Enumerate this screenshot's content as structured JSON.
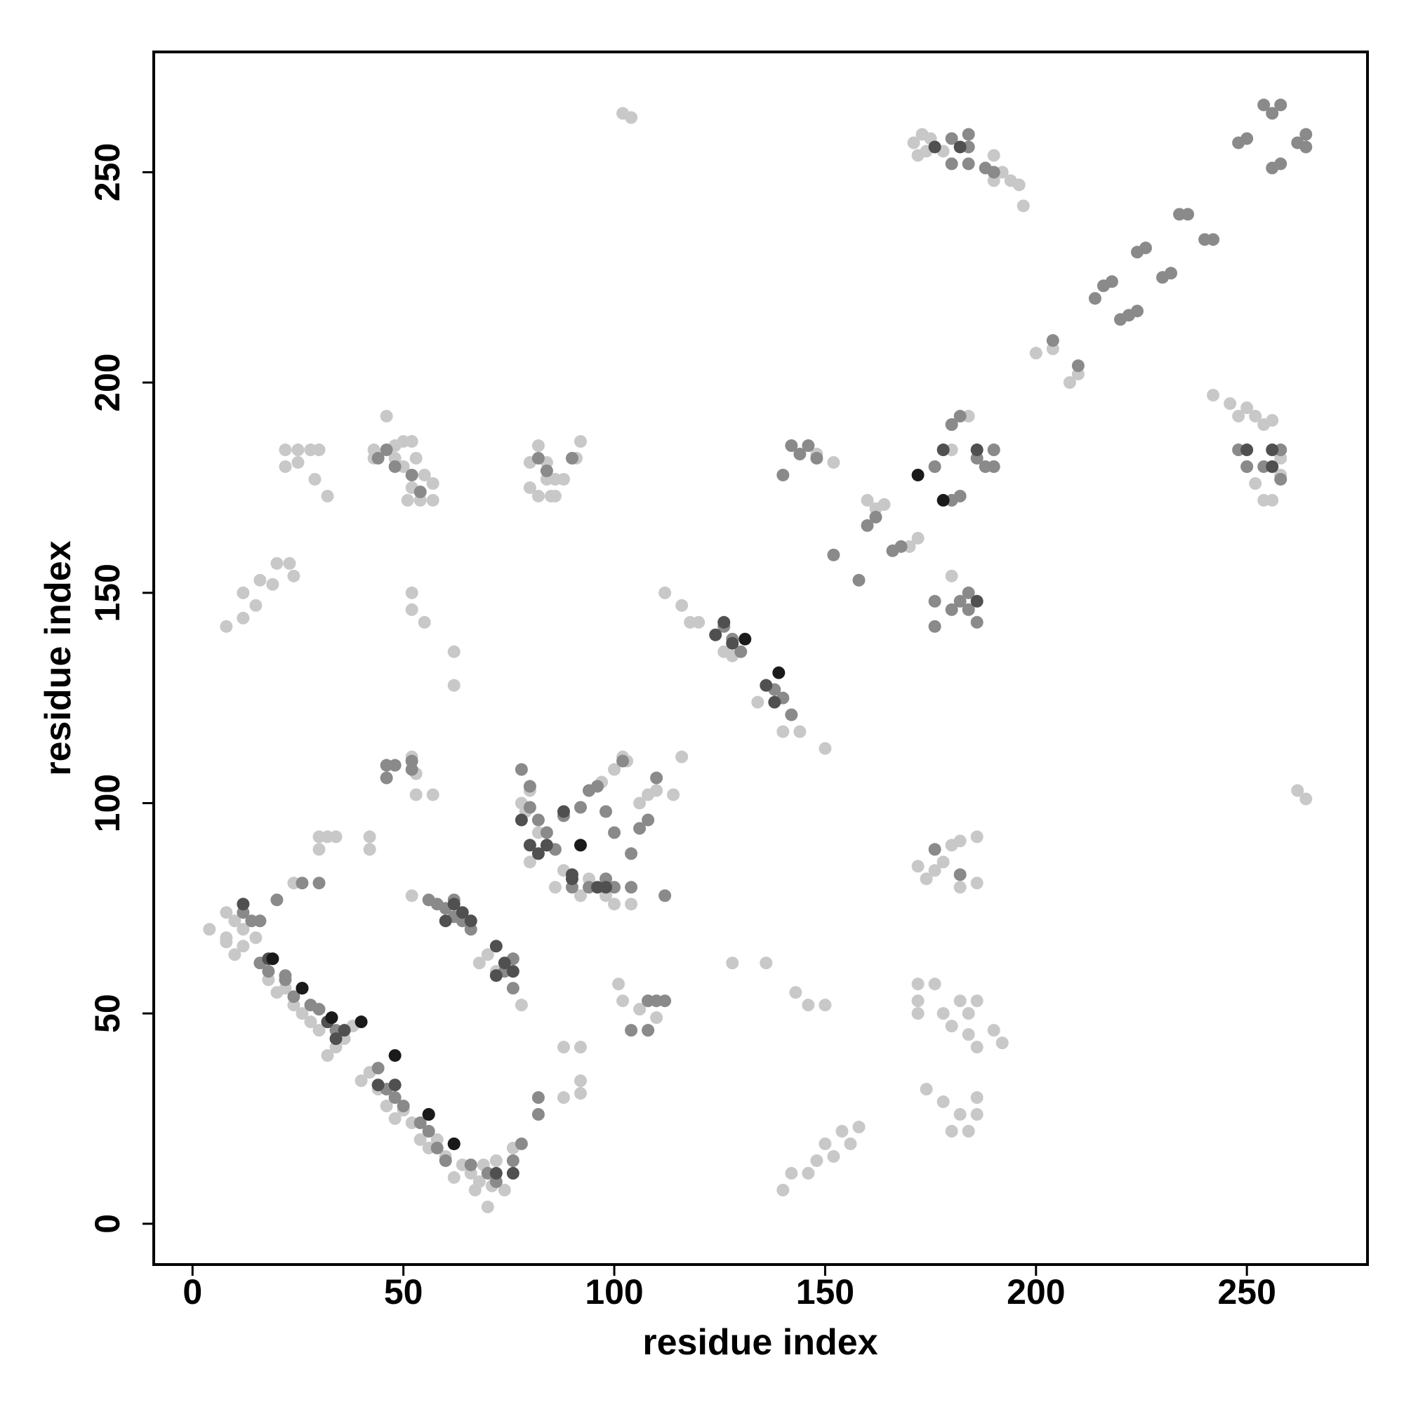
{
  "chart_data": {
    "type": "scatter",
    "xlabel": "residue index",
    "ylabel": "residue index",
    "xlim": [
      -9.2,
      278.6
    ],
    "ylim": [
      -9.7,
      278.6
    ],
    "xticks": [
      0,
      50,
      100,
      150,
      200,
      250
    ],
    "yticks": [
      0,
      50,
      100,
      150,
      200,
      250
    ],
    "series": [
      {
        "color": "#c8c8c8",
        "x": [
          4,
          8,
          8,
          10,
          12,
          12,
          15,
          10,
          8,
          16,
          8,
          12,
          12,
          15,
          16,
          19,
          20,
          23,
          24,
          22,
          22,
          25,
          28,
          29,
          30,
          32,
          25,
          43,
          43,
          46,
          48,
          48,
          50,
          50,
          52,
          53,
          52,
          51,
          54,
          57,
          57,
          55,
          30,
          30,
          32,
          34,
          42,
          42,
          24,
          52,
          52,
          55,
          62,
          62,
          52,
          53,
          53,
          57,
          52,
          80,
          82,
          84,
          84,
          85,
          86,
          88,
          86,
          91,
          92,
          80,
          82,
          18,
          20,
          22,
          24,
          26,
          28,
          30,
          32,
          34,
          36,
          38,
          40,
          42,
          44,
          46,
          48,
          50,
          52,
          54,
          56,
          58,
          60,
          62,
          64,
          66,
          67,
          68,
          69,
          70,
          71,
          72,
          74,
          76,
          78,
          68,
          72,
          70,
          79,
          80,
          78,
          80,
          82,
          84,
          86,
          88,
          92,
          94,
          98,
          100,
          104,
          97,
          100,
          102,
          103,
          106,
          108,
          110,
          114,
          88,
          92,
          88,
          92,
          92,
          101,
          102,
          106,
          108,
          110,
          108,
          116,
          116,
          120,
          112,
          118,
          126,
          128,
          134,
          136,
          140,
          144,
          150,
          128,
          136,
          143,
          146,
          150,
          140,
          142,
          146,
          148,
          150,
          152,
          154,
          156,
          158,
          102,
          104,
          171,
          172,
          173,
          175,
          174,
          178,
          190,
          192,
          194,
          196,
          197,
          190,
          200,
          204,
          208,
          210,
          160,
          162,
          164,
          170,
          172,
          148,
          152,
          180,
          180,
          184,
          180,
          190,
          172,
          174,
          176,
          178,
          180,
          182,
          186,
          182,
          186,
          172,
          172,
          172,
          176,
          178,
          180,
          182,
          184,
          186,
          184,
          186,
          190,
          192,
          174,
          178,
          180,
          182,
          184,
          186,
          186,
          242,
          246,
          248,
          250,
          252,
          254,
          256,
          250,
          252,
          254,
          256,
          258,
          258,
          264,
          262
        ],
        "y": [
          70,
          74,
          68,
          72,
          66,
          70,
          68,
          64,
          67,
          72,
          142,
          144,
          150,
          147,
          153,
          152,
          157,
          157,
          154,
          184,
          180,
          184,
          184,
          177,
          184,
          173,
          181,
          184,
          182,
          192,
          185,
          182,
          186,
          180,
          186,
          182,
          175,
          172,
          172,
          172,
          176,
          178,
          92,
          89,
          92,
          92,
          92,
          89,
          81,
          150,
          146,
          143,
          136,
          128,
          111,
          107,
          102,
          102,
          78,
          181,
          185,
          181,
          177,
          173,
          177,
          177,
          173,
          182,
          186,
          175,
          173,
          58,
          55,
          56,
          52,
          50,
          48,
          46,
          40,
          42,
          44,
          47,
          34,
          36,
          32,
          28,
          25,
          27,
          24,
          20,
          18,
          20,
          16,
          11,
          14,
          12,
          8,
          10,
          14,
          4,
          9,
          15,
          8,
          18,
          52,
          62,
          60,
          64,
          98,
          103,
          100,
          86,
          93,
          90,
          80,
          84,
          78,
          82,
          78,
          76,
          76,
          105,
          108,
          111,
          110,
          100,
          102,
          103,
          102,
          42,
          42,
          30,
          34,
          31,
          57,
          53,
          51,
          53,
          49,
          46,
          111,
          147,
          143,
          150,
          143,
          136,
          135,
          124,
          128,
          117,
          117,
          113,
          62,
          62,
          55,
          52,
          52,
          8,
          12,
          12,
          15,
          19,
          16,
          22,
          19,
          23,
          264,
          263,
          257,
          254,
          259,
          258,
          255,
          255,
          254,
          250,
          248,
          247,
          242,
          248,
          207,
          208,
          200,
          202,
          172,
          170,
          171,
          161,
          163,
          183,
          181,
          190,
          184,
          192,
          154,
          184,
          85,
          82,
          84,
          86,
          90,
          91,
          92,
          80,
          81,
          57,
          53,
          50,
          57,
          50,
          47,
          53,
          50,
          53,
          45,
          42,
          46,
          43,
          32,
          29,
          22,
          26,
          22,
          26,
          30,
          197,
          195,
          192,
          194,
          192,
          190,
          191,
          180,
          176,
          172,
          172,
          178,
          182,
          101,
          103
        ]
      },
      {
        "color": "#8a8a8a",
        "x": [
          12,
          14,
          16,
          20,
          16,
          18,
          22,
          24,
          26,
          28,
          30,
          32,
          34,
          44,
          46,
          48,
          50,
          54,
          56,
          58,
          60,
          66,
          70,
          72,
          76,
          78,
          82,
          82,
          26,
          30,
          22,
          46,
          46,
          48,
          52,
          52,
          56,
          58,
          60,
          62,
          64,
          66,
          76,
          74,
          76,
          78,
          80,
          80,
          82,
          84,
          86,
          88,
          92,
          94,
          96,
          98,
          100,
          102,
          104,
          106,
          108,
          110,
          112,
          104,
          100,
          98,
          90,
          94,
          108,
          104,
          110,
          112,
          108,
          82,
          84,
          90,
          44,
          46,
          48,
          52,
          54,
          62,
          126,
          128,
          130,
          138,
          140,
          142,
          142,
          144,
          146,
          148,
          140,
          152,
          158,
          160,
          162,
          166,
          168,
          176,
          180,
          182,
          180,
          182,
          186,
          190,
          190,
          188,
          180,
          184,
          180,
          184,
          184,
          188,
          190,
          176,
          182,
          184,
          186,
          176,
          180,
          184,
          176,
          182,
          204,
          210,
          214,
          216,
          218,
          220,
          222,
          224,
          224,
          226,
          230,
          232,
          234,
          236,
          240,
          242,
          248,
          250,
          254,
          256,
          258,
          256,
          258,
          262,
          264,
          264,
          248,
          250,
          254,
          258,
          258
        ],
        "y": [
          74,
          72,
          72,
          77,
          62,
          60,
          58,
          54,
          56,
          52,
          51,
          48,
          46,
          37,
          32,
          30,
          28,
          24,
          22,
          18,
          15,
          14,
          12,
          10,
          15,
          19,
          30,
          26,
          81,
          81,
          59,
          106,
          109,
          109,
          108,
          110,
          77,
          76,
          75,
          73,
          72,
          70,
          56,
          60,
          63,
          108,
          104,
          99,
          96,
          93,
          89,
          97,
          99,
          103,
          104,
          98,
          93,
          110,
          88,
          94,
          96,
          106,
          78,
          80,
          80,
          82,
          80,
          80,
          53,
          46,
          53,
          53,
          46,
          182,
          179,
          182,
          182,
          184,
          180,
          178,
          174,
          77,
          142,
          139,
          136,
          127,
          125,
          121,
          185,
          183,
          185,
          182,
          178,
          159,
          153,
          166,
          168,
          160,
          161,
          180,
          172,
          173,
          190,
          192,
          182,
          184,
          180,
          180,
          258,
          259,
          252,
          252,
          256,
          251,
          250,
          148,
          148,
          150,
          143,
          142,
          146,
          146,
          89,
          83,
          210,
          204,
          220,
          223,
          224,
          215,
          216,
          217,
          231,
          232,
          225,
          226,
          240,
          240,
          234,
          234,
          257,
          258,
          266,
          264,
          266,
          251,
          252,
          257,
          259,
          256,
          184,
          180,
          180,
          184,
          177
        ]
      },
      {
        "color": "#505050",
        "x": [
          12,
          18,
          26,
          32,
          34,
          36,
          44,
          48,
          56,
          62,
          72,
          76,
          60,
          62,
          64,
          66,
          72,
          74,
          76,
          72,
          78,
          80,
          82,
          84,
          88,
          90,
          90,
          96,
          98,
          124,
          126,
          128,
          136,
          138,
          178,
          186,
          250,
          256,
          256,
          186,
          176,
          182
        ],
        "y": [
          76,
          63,
          56,
          48,
          44,
          46,
          33,
          33,
          26,
          19,
          12,
          12,
          72,
          76,
          74,
          72,
          66,
          62,
          60,
          59,
          96,
          90,
          88,
          90,
          98,
          83,
          82,
          80,
          80,
          140,
          143,
          138,
          128,
          124,
          184,
          184,
          184,
          184,
          180,
          148,
          256,
          256
        ]
      },
      {
        "color": "#1a1a1a",
        "x": [
          19,
          26,
          33,
          40,
          48,
          56,
          62,
          92,
          131,
          139,
          172,
          178
        ],
        "y": [
          63,
          56,
          49,
          48,
          40,
          26,
          19,
          90,
          139,
          131,
          178,
          172
        ]
      }
    ]
  }
}
